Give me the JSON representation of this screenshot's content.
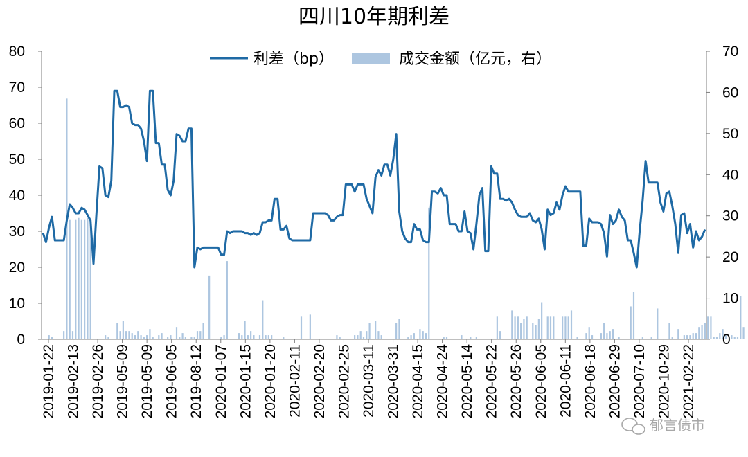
{
  "chart_data": {
    "type": "bar+line",
    "title": "四川10年期利差",
    "legend": {
      "line_label": "利差（bp）",
      "bar_label": "成交金额（亿元，右）",
      "placement": "top-center"
    },
    "colors": {
      "line": "#1f6aa5",
      "bar": "#adc6e0",
      "axis": "#000000"
    },
    "y_left": {
      "min": 0,
      "max": 80,
      "ticks": [
        0,
        10,
        20,
        30,
        40,
        50,
        60,
        70,
        80
      ]
    },
    "y_right": {
      "min": 0,
      "max": 70,
      "ticks": [
        0,
        10,
        20,
        30,
        40,
        50,
        60,
        70
      ]
    },
    "grid": false,
    "x_tick_labels": [
      "2019-01-22",
      "2019-02-13",
      "2019-02-26",
      "2019-05-09",
      "2019-05-09",
      "2019-06-05",
      "2019-08-12",
      "2020-01-07",
      "2020-01-15",
      "2020-01-20",
      "2020-02-11",
      "2020-02-20",
      "2020-02-25",
      "2020-03-11",
      "2020-03-31",
      "2020-04-15",
      "2020-04-24",
      "2020-05-14",
      "2020-05-22",
      "2020-05-26",
      "2020-06-05",
      "2020-06-11",
      "2020-06-18",
      "2020-06-29",
      "2020-07-10",
      "2020-10-29",
      "2021-02-22"
    ],
    "series": [
      {
        "name": "利差（bp）",
        "kind": "line",
        "axis": "left",
        "values": [
          29.5,
          27,
          31,
          34,
          27.5,
          27.5,
          27.5,
          27.5,
          33,
          37.5,
          36.5,
          35,
          35,
          36.5,
          36,
          34.5,
          33,
          21,
          35,
          48,
          47.5,
          40,
          39.5,
          44,
          69,
          69,
          64.5,
          64.5,
          65,
          64.5,
          60,
          59.5,
          59.5,
          58.5,
          55,
          49.5,
          69,
          69,
          54.5,
          54.5,
          48.5,
          48.5,
          41.5,
          40,
          44,
          57,
          56.5,
          55,
          55,
          58.5,
          58.5,
          20,
          25.5,
          25,
          25.5,
          25.5,
          25.5,
          25.5,
          25.5,
          25.5,
          23.5,
          23.5,
          30,
          29.5,
          30,
          30,
          30,
          30,
          29.5,
          29.5,
          29,
          29.5,
          29,
          29.5,
          32.5,
          32.5,
          33,
          33,
          39,
          39,
          30.5,
          30.5,
          31.5,
          28,
          27.5,
          27.5,
          27.5,
          27.5,
          27.5,
          27.5,
          27.5,
          35,
          35,
          35,
          35,
          35,
          34.5,
          33,
          33,
          34,
          34.5,
          34.5,
          43,
          43,
          43,
          41,
          43,
          43,
          43,
          39,
          37,
          35,
          45,
          47,
          45.5,
          48.5,
          48.5,
          45.5,
          50,
          57,
          35.5,
          30,
          28,
          27,
          27,
          32,
          30.5,
          30.5,
          27.5,
          27,
          27,
          41,
          41,
          40.5,
          42,
          40,
          40,
          32,
          32,
          32,
          30,
          30,
          35.5,
          30,
          29.5,
          25,
          32,
          40,
          42,
          24.5,
          24.5,
          48,
          46,
          46,
          39,
          39,
          38.5,
          39,
          38,
          36,
          34.5,
          34,
          34,
          34,
          35,
          33,
          32.5,
          33.5,
          30.5,
          25,
          36,
          34.5,
          35,
          38,
          36,
          40,
          42.5,
          41,
          41,
          41,
          41,
          41,
          26,
          26,
          33.5,
          32.5,
          32.5,
          32.5,
          32,
          29.5,
          23,
          34.5,
          32,
          33,
          36,
          34,
          33,
          27.5,
          27.5,
          24,
          20,
          30,
          38.5,
          49.5,
          43.5,
          43.5,
          43.5,
          43.5,
          38,
          35.5,
          40.5,
          41,
          37,
          32,
          24,
          34.5,
          35,
          29.5,
          32,
          25.5,
          30,
          27.5,
          28.5,
          30.5
        ]
      },
      {
        "name": "成交金额（亿元，右）",
        "kind": "bar",
        "axis": "right",
        "values": [
          0,
          0,
          1,
          0.5,
          0,
          0,
          0,
          2,
          58.5,
          29,
          2,
          29,
          29.5,
          29,
          29,
          29.5,
          29,
          0,
          0,
          0,
          0,
          1,
          0.5,
          0,
          0,
          4,
          2,
          4.5,
          2,
          2,
          1.5,
          1,
          2,
          1,
          0.5,
          1,
          2.5,
          0.5,
          0,
          1,
          1.5,
          0,
          0.5,
          1,
          0,
          3,
          0.5,
          1.5,
          0.5,
          0,
          0.5,
          0.5,
          2,
          2,
          4,
          0,
          15.5,
          0,
          0,
          0,
          0.5,
          1,
          19,
          0,
          0,
          0,
          1.5,
          1,
          4.5,
          1,
          2,
          1,
          0,
          1,
          9.5,
          1,
          1,
          1,
          0,
          0,
          0,
          0.5,
          0,
          0,
          0,
          0,
          0,
          5.5,
          0,
          0,
          6,
          0,
          0,
          0,
          0,
          0,
          0,
          0,
          0,
          1,
          0.5,
          0,
          0,
          0,
          0,
          1,
          1,
          2,
          0.5,
          2,
          4,
          0,
          4.5,
          2,
          1,
          0,
          0,
          0,
          0,
          4,
          5,
          0,
          0,
          0.5,
          1,
          1.5,
          0,
          2.5,
          2,
          1.5,
          32,
          0,
          0,
          0,
          0,
          0.5,
          0.5,
          0,
          0,
          0,
          0,
          1,
          0,
          0,
          0.5,
          0,
          0.5,
          0,
          0,
          0,
          0,
          0,
          0,
          5.5,
          2,
          0,
          0,
          0,
          7,
          5.5,
          5.5,
          4,
          5,
          5.5,
          0,
          4,
          3.5,
          5,
          9,
          0,
          5.5,
          5.5,
          5.5,
          0,
          0,
          5.5,
          5.5,
          5.5,
          7,
          0,
          0.5,
          0,
          0,
          1.5,
          3,
          1,
          0,
          0,
          1.5,
          4,
          1.5,
          2,
          2.5,
          0,
          0.5,
          0,
          0,
          0,
          8,
          11.5,
          0,
          0,
          0.5,
          0,
          0,
          0.5,
          0,
          7.5,
          0,
          0,
          0,
          4,
          0.5,
          0,
          2.5,
          0,
          1,
          1,
          1,
          1.5,
          1.5,
          3,
          3.5,
          4,
          5.5,
          5.5,
          0.5,
          0.5,
          1.5,
          2.5,
          1,
          0,
          1,
          0.5,
          0.5,
          10.5,
          3,
          0,
          6,
          1.5
        ]
      }
    ]
  },
  "watermark": {
    "icon": "wechat-icon",
    "text": "郁言债市"
  }
}
